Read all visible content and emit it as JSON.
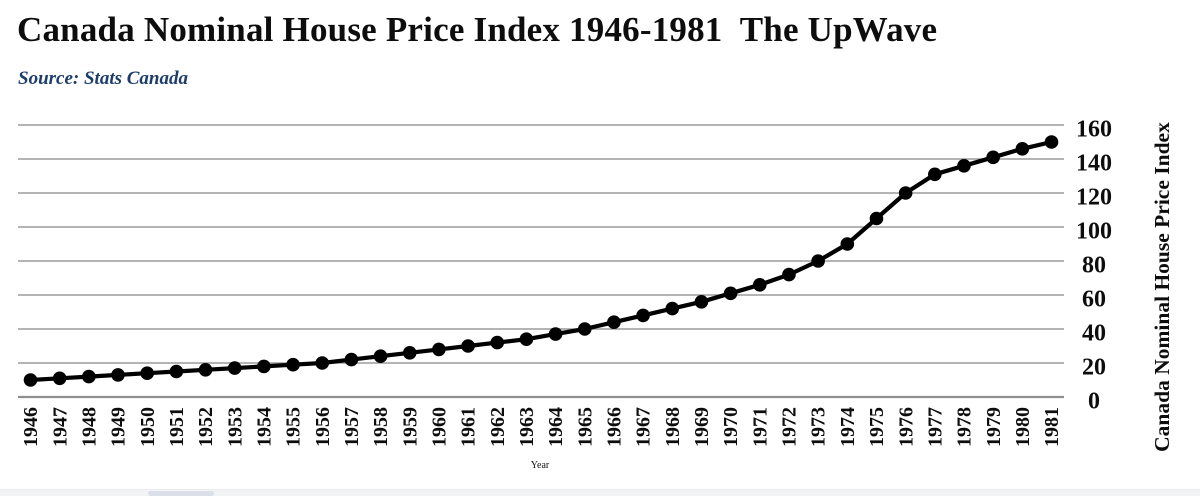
{
  "header": {
    "title": "Canada Nominal House Price Index 1946-1981  The UpWave",
    "source": "Source: Stats Canada"
  },
  "colors": {
    "line": "#000000",
    "gridline": "#9c9c9c",
    "axis_line": "#8f8f8f",
    "source_text": "#1d3e6b",
    "background": "#ffffff"
  },
  "chart_data": {
    "type": "line",
    "title": "Canada Nominal House Price Index 1946-1981  The UpWave",
    "source": "Source: Stats Canada",
    "xlabel": "Year",
    "ylabel_right": "Canada Nominal House Price Index",
    "legend": "none",
    "grid": "horizontal",
    "marker": "filled-circle",
    "ylim": [
      0,
      160
    ],
    "yticks": [
      0,
      20,
      40,
      60,
      80,
      100,
      120,
      140,
      160
    ],
    "x": [
      1946,
      1947,
      1948,
      1949,
      1950,
      1951,
      1952,
      1953,
      1954,
      1955,
      1956,
      1957,
      1958,
      1959,
      1960,
      1961,
      1962,
      1963,
      1964,
      1965,
      1966,
      1967,
      1968,
      1969,
      1970,
      1971,
      1972,
      1973,
      1974,
      1975,
      1976,
      1977,
      1978,
      1979,
      1980,
      1981
    ],
    "values": [
      10,
      11,
      12,
      13,
      14,
      15,
      16,
      17,
      18,
      19,
      20,
      22,
      24,
      26,
      28,
      30,
      32,
      34,
      37,
      40,
      44,
      48,
      52,
      56,
      61,
      66,
      72,
      80,
      90,
      105,
      120,
      131,
      136,
      141,
      146,
      150
    ]
  }
}
